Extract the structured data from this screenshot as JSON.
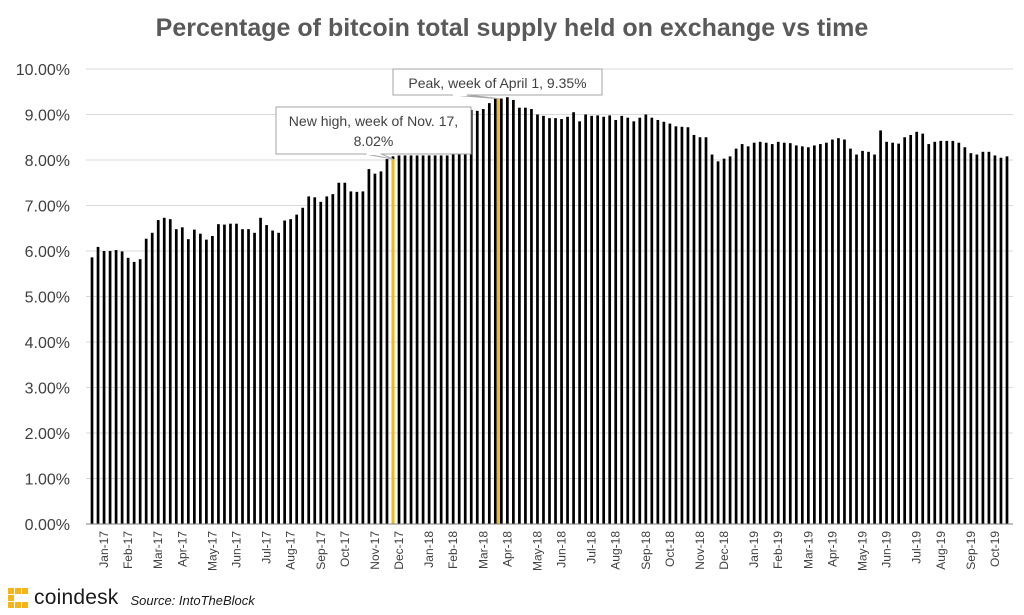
{
  "chart_data": {
    "type": "bar",
    "title": "Percentage of bitcoin total supply held on exchange vs time",
    "ylim": [
      0,
      10
    ],
    "y_ticks": [
      "0.00%",
      "1.00%",
      "2.00%",
      "3.00%",
      "4.00%",
      "5.00%",
      "6.00%",
      "7.00%",
      "8.00%",
      "9.00%",
      "10.00%"
    ],
    "x_tick_labels": [
      "Jan-17",
      "Feb-17",
      "Mar-17",
      "Apr-17",
      "May-17",
      "Jun-17",
      "Jul-17",
      "Aug-17",
      "Sep-17",
      "Oct-17",
      "Nov-17",
      "Dec-17",
      "Jan-18",
      "Feb-18",
      "Mar-18",
      "Apr-18",
      "May-18",
      "Jun-18",
      "Jul-18",
      "Aug-18",
      "Sep-18",
      "Oct-18",
      "Nov-18",
      "Dec-18",
      "Jan-19",
      "Feb-19",
      "Mar-19",
      "Apr-19",
      "May-19",
      "Jun-19",
      "Jul-19",
      "Aug-19",
      "Sep-19",
      "Oct-19"
    ],
    "grid": true,
    "values": [
      5.86,
      6.09,
      6.0,
      6.0,
      6.02,
      5.99,
      5.85,
      5.76,
      5.82,
      6.27,
      6.4,
      6.68,
      6.73,
      6.7,
      6.48,
      6.52,
      6.26,
      6.47,
      6.38,
      6.25,
      6.33,
      6.59,
      6.58,
      6.6,
      6.6,
      6.48,
      6.48,
      6.4,
      6.73,
      6.57,
      6.45,
      6.4,
      6.67,
      6.7,
      6.8,
      6.95,
      7.2,
      7.18,
      7.08,
      7.2,
      7.25,
      7.5,
      7.5,
      7.31,
      7.3,
      7.31,
      7.8,
      7.7,
      7.75,
      8.02,
      8.08,
      8.1,
      8.1,
      8.1,
      8.1,
      8.1,
      8.1,
      8.1,
      8.1,
      8.1,
      8.4,
      8.6,
      9.05,
      9.1,
      9.08,
      9.12,
      9.25,
      9.35,
      9.35,
      9.38,
      9.32,
      9.15,
      9.15,
      9.12,
      9.0,
      8.97,
      8.92,
      8.92,
      8.9,
      8.95,
      9.05,
      8.85,
      9.0,
      8.97,
      8.98,
      8.95,
      8.98,
      8.88,
      8.97,
      8.93,
      8.85,
      8.93,
      9.0,
      8.93,
      8.88,
      8.84,
      8.8,
      8.74,
      8.73,
      8.72,
      8.55,
      8.5,
      8.5,
      8.12,
      7.97,
      8.03,
      8.08,
      8.25,
      8.35,
      8.3,
      8.38,
      8.4,
      8.38,
      8.35,
      8.4,
      8.38,
      8.37,
      8.32,
      8.3,
      8.28,
      8.32,
      8.35,
      8.38,
      8.45,
      8.48,
      8.45,
      8.25,
      8.12,
      8.2,
      8.18,
      8.12,
      8.65,
      8.4,
      8.38,
      8.36,
      8.5,
      8.55,
      8.62,
      8.58,
      8.35,
      8.4,
      8.42,
      8.42,
      8.42,
      8.38,
      8.28,
      8.15,
      8.12,
      8.18,
      8.18,
      8.1,
      8.05,
      8.08
    ],
    "annotations": [
      {
        "text_line1": "New high, week of Nov. 17,",
        "text_line2": "8.02%",
        "x_label": "Nov-17",
        "value": 8.02
      },
      {
        "text_line1": "Peak, week of April 1, 9.35%",
        "x_label": "Apr-18",
        "value": 9.35
      }
    ],
    "colors": {
      "bar": "#000000",
      "highlight": "#f2b81c",
      "grid": "#d9d9d9",
      "axis_text": "#404040"
    }
  },
  "branding": {
    "logo": "coindesk",
    "source": "Source: IntoTheBlock"
  }
}
